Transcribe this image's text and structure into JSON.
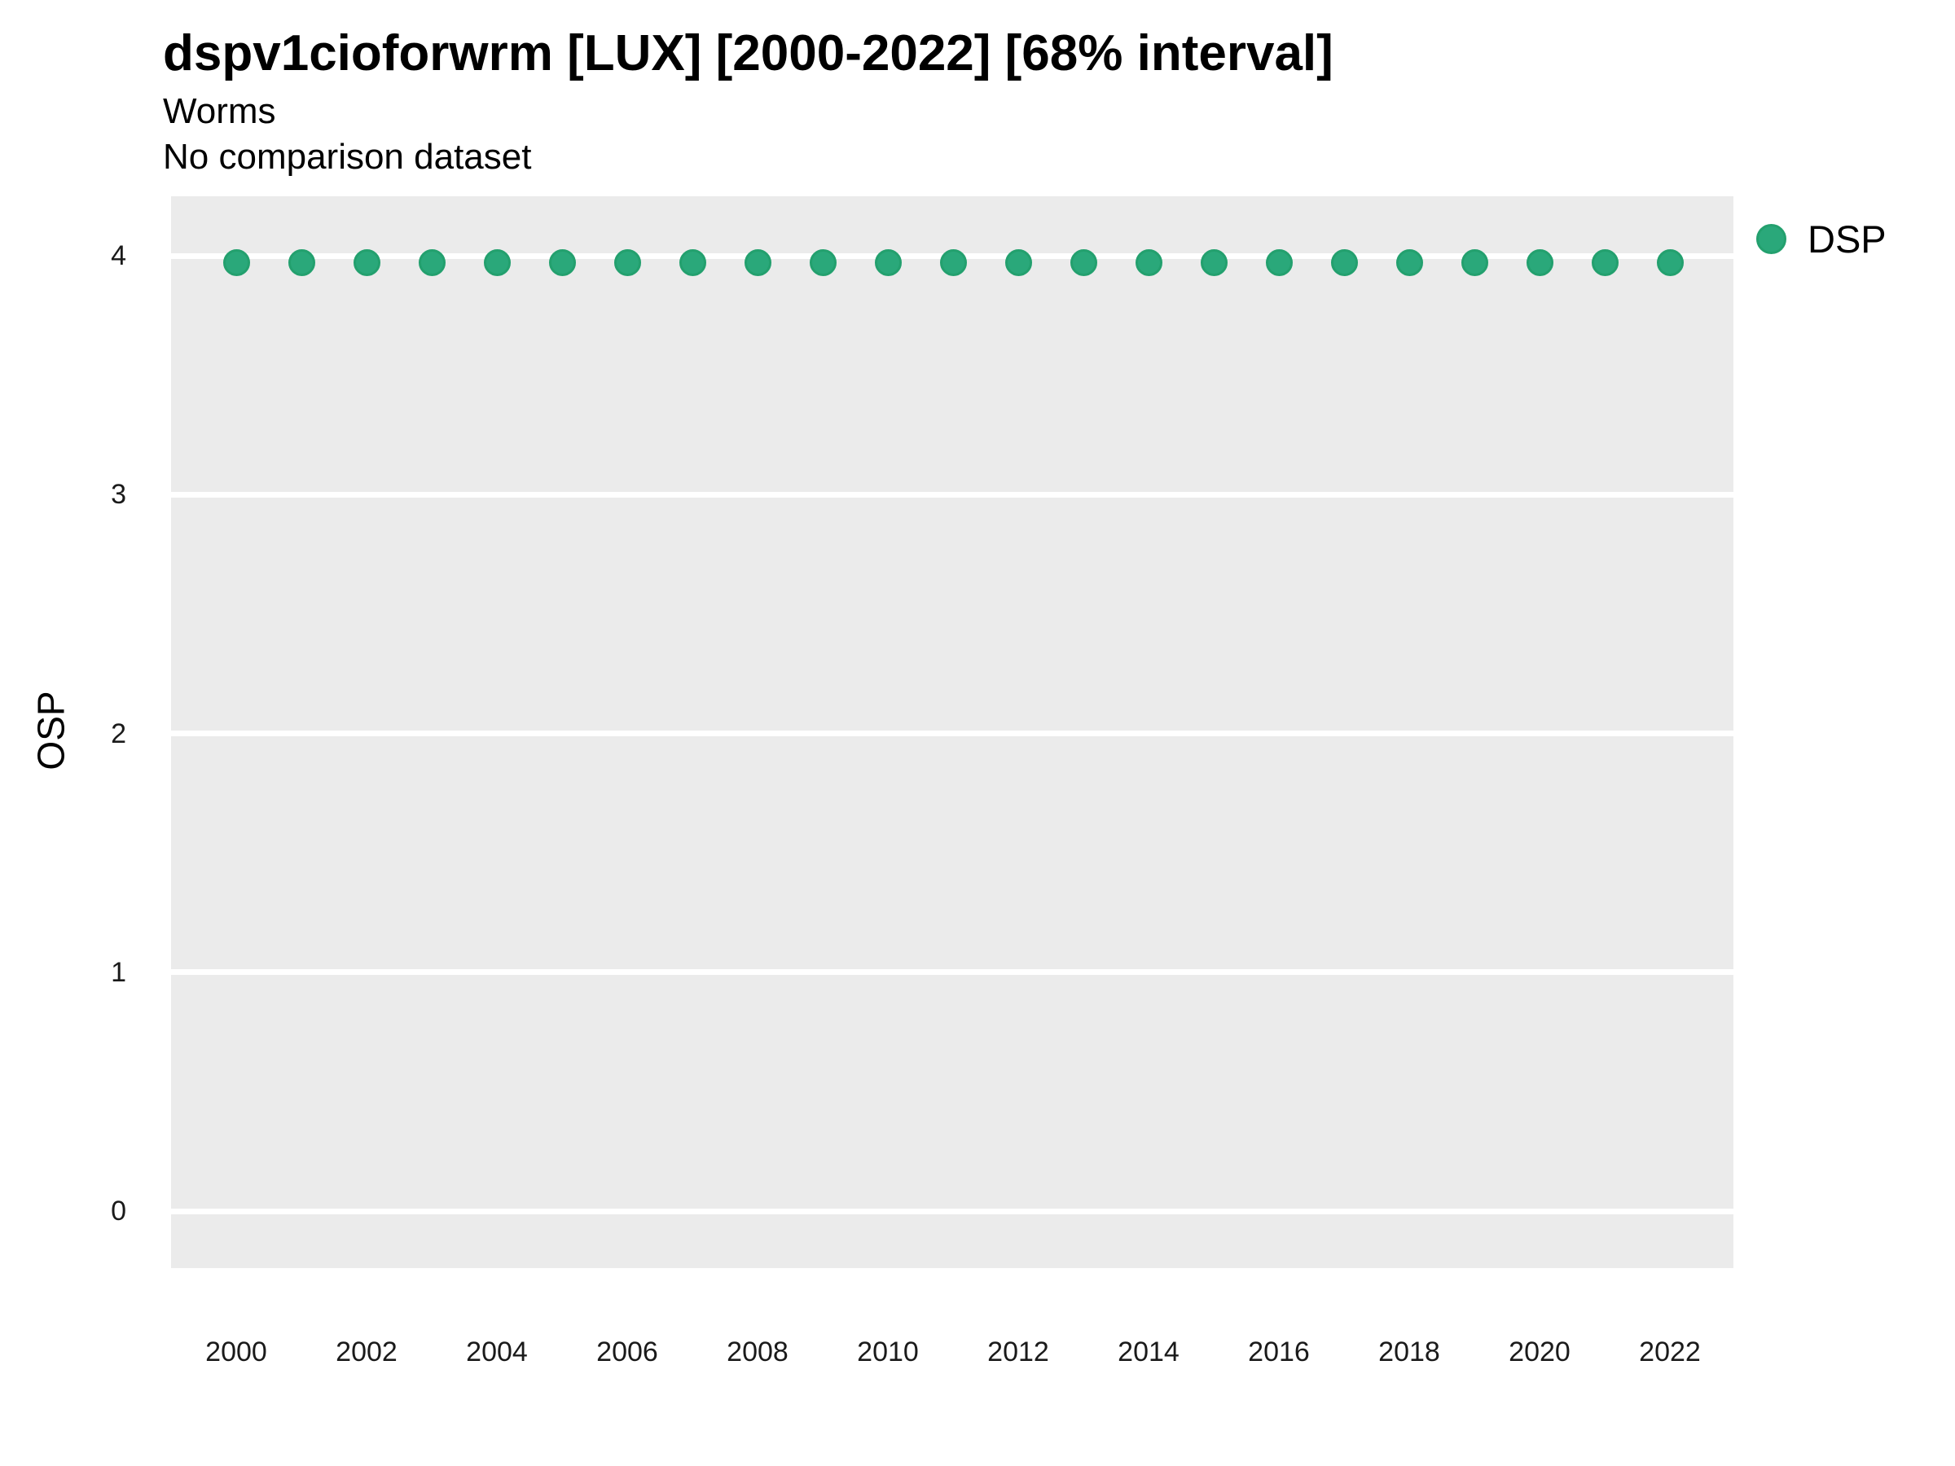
{
  "chart": {
    "title": "dspv1cioforwrm [LUX] [2000-2022] [68% interval]",
    "subtitle": "Worms",
    "note": "No comparison dataset",
    "ylabel": "OSP",
    "legend": {
      "label": "DSP"
    }
  },
  "chart_data": {
    "type": "scatter",
    "title": "dspv1cioforwrm [LUX] [2000-2022] [68% interval]",
    "subtitle": "Worms",
    "annotation": "No comparison dataset",
    "xlabel": "",
    "ylabel": "OSP",
    "x": [
      2000,
      2001,
      2002,
      2003,
      2004,
      2005,
      2006,
      2007,
      2008,
      2009,
      2010,
      2011,
      2012,
      2013,
      2014,
      2015,
      2016,
      2017,
      2018,
      2019,
      2020,
      2021,
      2022
    ],
    "series": [
      {
        "name": "DSP",
        "values": [
          3.97,
          3.97,
          3.97,
          3.97,
          3.97,
          3.97,
          3.97,
          3.97,
          3.97,
          3.97,
          3.97,
          3.97,
          3.97,
          3.97,
          3.97,
          3.97,
          3.97,
          3.97,
          3.97,
          3.97,
          3.97,
          3.97,
          3.97
        ]
      }
    ],
    "ylim": [
      -0.25,
      4.25
    ],
    "yticks": [
      0,
      1,
      2,
      3,
      4
    ],
    "xticks": [
      2000,
      2002,
      2004,
      2006,
      2008,
      2010,
      2012,
      2014,
      2016,
      2018,
      2020,
      2022
    ],
    "grid": "horizontal-major-only",
    "gridline_color": "#ffffff",
    "panel_background": "#ebebeb",
    "point_color": "#2aa87a",
    "legend_position": "right",
    "legend_entries": [
      "DSP"
    ]
  }
}
